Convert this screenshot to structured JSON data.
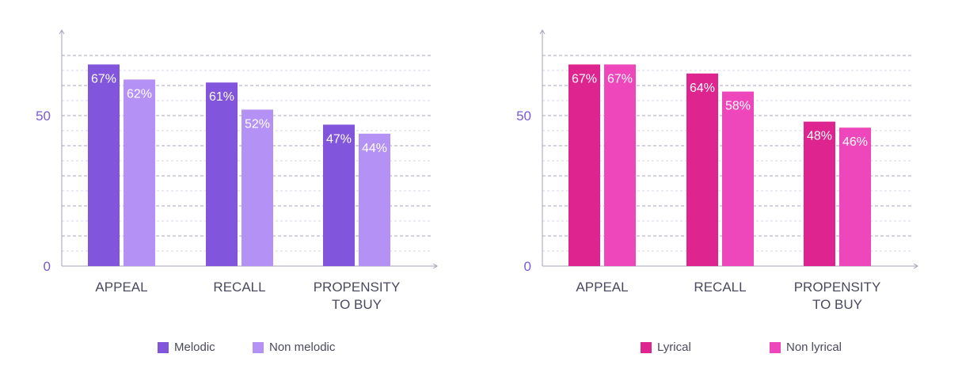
{
  "chart_data": [
    {
      "type": "bar",
      "categories": [
        [
          "APPEAL"
        ],
        [
          "RECALL"
        ],
        [
          "PROPENSITY",
          "TO BUY"
        ]
      ],
      "series": [
        {
          "name": "Melodic",
          "values": [
            67,
            61,
            47
          ],
          "labels": [
            "67%",
            "61%",
            "47%"
          ],
          "color": "#8155dc"
        },
        {
          "name": "Non melodic",
          "values": [
            62,
            52,
            44
          ],
          "labels": [
            "62%",
            "52%",
            "44%"
          ],
          "color": "#b491f4"
        }
      ],
      "yticks": [
        0,
        50
      ],
      "ylim": [
        0,
        80
      ],
      "grid": true,
      "legend_position": "bottom"
    },
    {
      "type": "bar",
      "categories": [
        [
          "APPEAL"
        ],
        [
          "RECALL"
        ],
        [
          "PROPENSITY",
          "TO BUY"
        ]
      ],
      "series": [
        {
          "name": "Lyrical",
          "values": [
            67,
            64,
            48
          ],
          "labels": [
            "67%",
            "64%",
            "48%"
          ],
          "color": "#de248e"
        },
        {
          "name": "Non lyrical",
          "values": [
            67,
            58,
            46
          ],
          "labels": [
            "67%",
            "58%",
            "46%"
          ],
          "color": "#ee46bb"
        }
      ],
      "yticks": [
        0,
        50
      ],
      "ylim": [
        0,
        80
      ],
      "grid": true,
      "legend_position": "bottom"
    }
  ]
}
